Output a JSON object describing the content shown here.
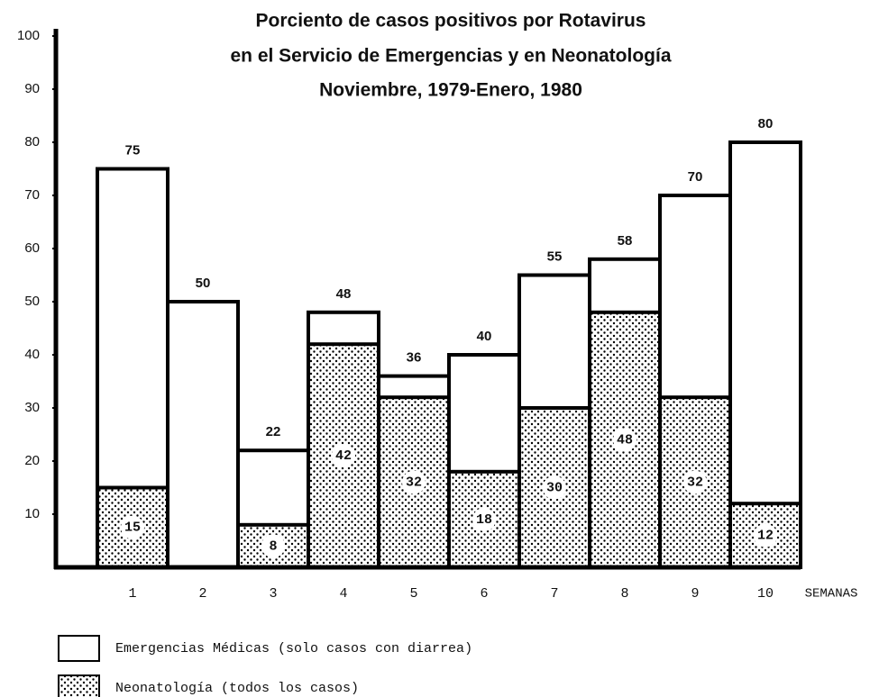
{
  "chart_data": {
    "type": "bar",
    "title": [
      "Porciento de casos positivos por Rotavirus",
      "en el Servicio de Emergencias y en Neonatología",
      "Noviembre, 1979-Enero, 1980"
    ],
    "categories": [
      "1",
      "2",
      "3",
      "4",
      "5",
      "6",
      "7",
      "8",
      "9",
      "10"
    ],
    "x_label": "SEMANAS",
    "series": [
      {
        "name": "Emergencias Médicas (solo casos con diarrea)",
        "color": "#ffffff",
        "values": [
          75,
          50,
          22,
          48,
          36,
          40,
          55,
          58,
          70,
          80
        ]
      },
      {
        "name": "Neonatología (todos los casos)",
        "color": "#000000",
        "pattern": "dots",
        "values": [
          15,
          null,
          8,
          42,
          32,
          18,
          30,
          48,
          32,
          12
        ]
      }
    ],
    "ylim": [
      0,
      100
    ],
    "yticks": [
      10,
      20,
      30,
      40,
      50,
      60,
      70,
      80,
      90,
      100
    ],
    "grid": false
  }
}
